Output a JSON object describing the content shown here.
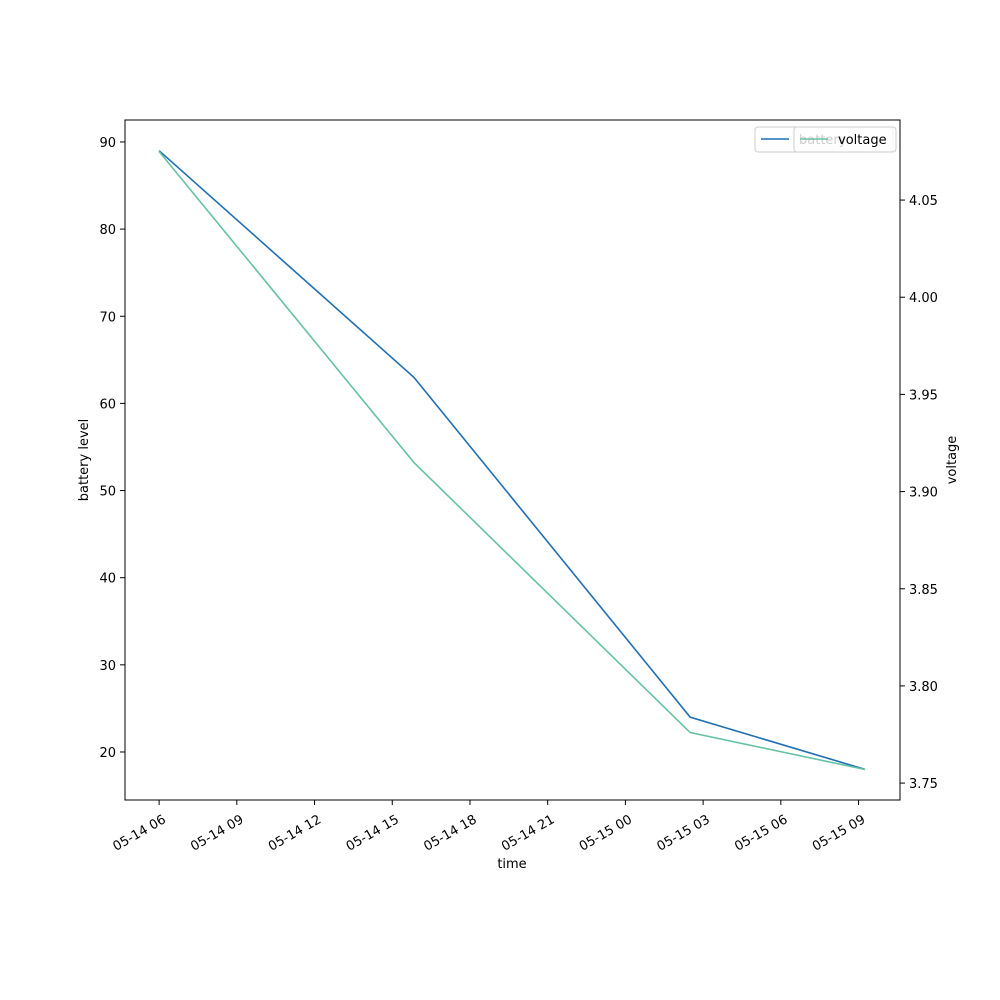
{
  "chart_data": {
    "type": "line",
    "x_label": "time",
    "y_label": "battery level",
    "y2_label": "voltage",
    "x": [
      "05-14 06:00",
      "05-14 15:50",
      "05-15 02:30",
      "05-15 09:15"
    ],
    "xlim": [
      "05-14 04:41",
      "05-15 10:36"
    ],
    "xticks": [
      "05-14 06",
      "05-14 09",
      "05-14 12",
      "05-14 15",
      "05-14 18",
      "05-14 21",
      "05-15 00",
      "05-15 03",
      "05-15 06",
      "05-15 09"
    ],
    "ylim": [
      14.49,
      92.52
    ],
    "yticks": [
      20,
      30,
      40,
      50,
      60,
      70,
      80,
      90
    ],
    "y2lim": [
      3.7413,
      4.0912
    ],
    "y2ticks": [
      3.75,
      {
        "value": 3.8,
        "label": "3.80"
      },
      3.85,
      {
        "value": 3.9,
        "label": "3.90"
      },
      3.95,
      {
        "value": 4.0,
        "label": "4.00"
      },
      4.05
    ],
    "legend": "upper right",
    "series": [
      {
        "name": "battery",
        "color": "#1f6fb2",
        "values": [
          89,
          63,
          24,
          18
        ]
      },
      {
        "name": "voltage",
        "color": "#66c2a5",
        "axis": "y2",
        "values": [
          4.075,
          3.915,
          3.776,
          3.757
        ]
      }
    ]
  }
}
